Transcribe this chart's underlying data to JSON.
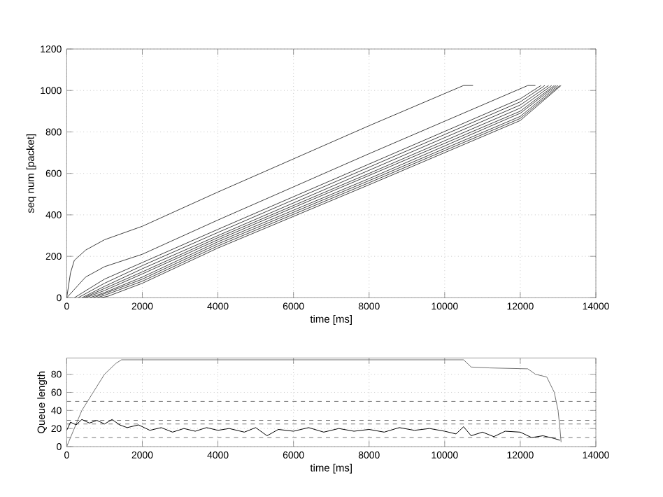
{
  "chart_data": [
    {
      "type": "line",
      "xlabel": "time [ms]",
      "ylabel": "seq num [packet]",
      "xlim": [
        0,
        14000
      ],
      "xticks": [
        0,
        2000,
        4000,
        6000,
        8000,
        10000,
        12000,
        14000
      ],
      "ylim": [
        0,
        1200
      ],
      "yticks": [
        0,
        200,
        400,
        600,
        800,
        1000,
        1200
      ],
      "grid": true,
      "line_style": "solid",
      "series": [
        {
          "color": "#404040",
          "x": [
            0,
            100,
            200,
            500,
            1000,
            2000,
            4000,
            8000,
            10500,
            10750
          ],
          "values": [
            0,
            120,
            180,
            230,
            280,
            345,
            510,
            830,
            1024,
            1024
          ]
        },
        {
          "color": "#404040",
          "x": [
            0,
            300,
            500,
            1000,
            2000,
            4000,
            8000,
            12200,
            12400
          ],
          "values": [
            0,
            60,
            100,
            150,
            210,
            375,
            695,
            1024,
            1024
          ]
        },
        {
          "color": "#404040",
          "x": [
            200,
            1000,
            2000,
            4000,
            8000,
            12000,
            12550
          ],
          "values": [
            0,
            90,
            170,
            330,
            645,
            960,
            1024
          ]
        },
        {
          "color": "#404040",
          "x": [
            300,
            1000,
            2000,
            4000,
            8000,
            12000,
            12650
          ],
          "values": [
            0,
            70,
            155,
            315,
            630,
            945,
            1024
          ]
        },
        {
          "color": "#404040",
          "x": [
            400,
            1000,
            2000,
            4000,
            8000,
            12000,
            12750
          ],
          "values": [
            0,
            55,
            140,
            300,
            615,
            930,
            1024
          ]
        },
        {
          "color": "#404040",
          "x": [
            450,
            1000,
            2000,
            4000,
            8000,
            12000,
            12830
          ],
          "values": [
            0,
            45,
            125,
            290,
            600,
            915,
            1024
          ]
        },
        {
          "color": "#404040",
          "x": [
            500,
            1000,
            2000,
            4000,
            8000,
            12000,
            12900
          ],
          "values": [
            0,
            35,
            115,
            280,
            590,
            900,
            1024
          ]
        },
        {
          "color": "#404040",
          "x": [
            600,
            1000,
            2000,
            4000,
            8000,
            12000,
            12950
          ],
          "values": [
            0,
            25,
            100,
            270,
            575,
            890,
            1024
          ]
        },
        {
          "color": "#404040",
          "x": [
            700,
            1000,
            2000,
            4000,
            8000,
            12000,
            13000
          ],
          "values": [
            0,
            20,
            90,
            260,
            565,
            875,
            1024
          ]
        },
        {
          "color": "#404040",
          "x": [
            800,
            1000,
            2000,
            4000,
            8000,
            12000,
            13050
          ],
          "values": [
            0,
            12,
            80,
            250,
            555,
            865,
            1024
          ]
        },
        {
          "color": "#404040",
          "x": [
            900,
            1100,
            2000,
            4000,
            8000,
            12000,
            13080
          ],
          "values": [
            0,
            8,
            70,
            240,
            545,
            855,
            1024
          ]
        }
      ]
    },
    {
      "type": "line",
      "xlabel": "time [ms]",
      "ylabel": "Queue length",
      "xlim": [
        0,
        14000
      ],
      "xticks": [
        0,
        2000,
        4000,
        6000,
        8000,
        10000,
        12000,
        14000
      ],
      "ylim": [
        0,
        98
      ],
      "yticks": [
        0,
        20,
        40,
        60,
        80
      ],
      "grid": true,
      "line_style": "solid",
      "ref_lines": [
        {
          "axis": "y",
          "value": 50,
          "color": "#505050",
          "line_style": "dashed"
        },
        {
          "axis": "y",
          "value": 29,
          "color": "#505050",
          "line_style": "dashed"
        },
        {
          "axis": "y",
          "value": 25,
          "color": "#505050",
          "line_style": "dashed"
        },
        {
          "axis": "y",
          "value": 10,
          "color": "#505050",
          "line_style": "dashed"
        }
      ],
      "series": [
        {
          "color": "#707070",
          "x": [
            0,
            200,
            400,
            700,
            1000,
            1300,
            1450,
            10500,
            10700,
            11200,
            12200,
            12400,
            12700,
            12900,
            13000,
            13050,
            13080
          ],
          "values": [
            0,
            20,
            40,
            60,
            80,
            92,
            96,
            96,
            88,
            87,
            86,
            80,
            77,
            60,
            40,
            20,
            5
          ]
        },
        {
          "color": "#000000",
          "x": [
            0,
            100,
            250,
            400,
            600,
            800,
            1000,
            1200,
            1400,
            1600,
            1900,
            2200,
            2500,
            2800,
            3100,
            3400,
            3700,
            4000,
            4300,
            4700,
            5000,
            5300,
            5600,
            6000,
            6400,
            6800,
            7200,
            7600,
            8000,
            8400,
            8800,
            9200,
            9600,
            10000,
            10300,
            10500,
            10700,
            11000,
            11300,
            11600,
            12000,
            12300,
            12600,
            12900,
            13050
          ],
          "values": [
            18,
            27,
            24,
            30,
            26,
            29,
            25,
            30,
            24,
            21,
            24,
            18,
            21,
            16,
            20,
            17,
            21,
            18,
            20,
            16,
            21,
            12,
            19,
            17,
            21,
            16,
            20,
            17,
            19,
            16,
            21,
            18,
            20,
            17,
            14,
            22,
            12,
            16,
            11,
            17,
            16,
            10,
            12,
            9,
            7
          ]
        }
      ]
    }
  ]
}
